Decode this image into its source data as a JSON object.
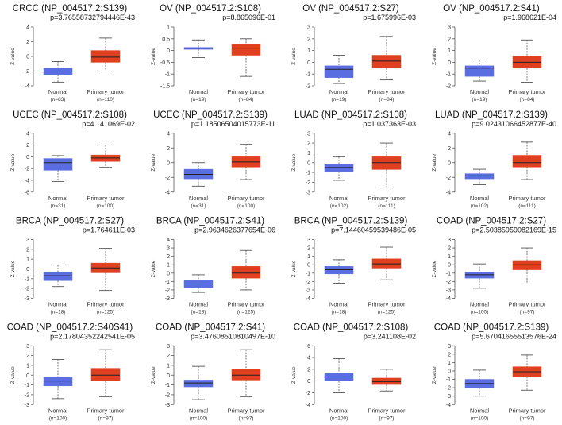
{
  "colors": {
    "normal_box": "#5b6ee1",
    "tumor_box": "#e0401f",
    "whisker": "#555555",
    "axis": "#555555",
    "median": "#222222"
  },
  "ylabel": "Z-value",
  "chart_data": [
    {
      "type": "box",
      "title": "CRCC (NP_004517.2:S139)",
      "pvalue": "p=3.76558732794446E-43",
      "ylim": [
        -4,
        4
      ],
      "yticks": [
        "-4",
        "-2",
        "0",
        "2",
        "4"
      ],
      "groups": [
        {
          "label": "Normal",
          "n": "(n=83)",
          "min": -3.5,
          "q1": -2.5,
          "median": -2.0,
          "q3": -1.6,
          "max": -0.7
        },
        {
          "label": "Primary tumor",
          "n": "(n=110)",
          "min": -2.0,
          "q1": -0.8,
          "median": -0.1,
          "q3": 0.8,
          "max": 2.5
        }
      ]
    },
    {
      "type": "box",
      "title": "OV (NP_004517.2:S108)",
      "pvalue": "p=8.865096E-01",
      "ylim": [
        -1.5,
        1.0
      ],
      "yticks": [
        "-1.5",
        "-1",
        "-0.5",
        "0",
        "0.5",
        "1"
      ],
      "groups": [
        {
          "label": "Normal",
          "n": "(n=19)",
          "min": -0.3,
          "q1": 0.05,
          "median": 0.1,
          "q3": 0.13,
          "max": 0.45
        },
        {
          "label": "Primary tumor",
          "n": "(n=84)",
          "min": -1.1,
          "q1": -0.2,
          "median": 0.1,
          "q3": 0.25,
          "max": 0.5
        }
      ]
    },
    {
      "type": "box",
      "title": "OV (NP_004517.2:S27)",
      "pvalue": "p=1.675996E-03",
      "ylim": [
        -2,
        3
      ],
      "yticks": [
        "-2",
        "-1",
        "0",
        "1",
        "2",
        "3"
      ],
      "groups": [
        {
          "label": "Normal",
          "n": "(n=19)",
          "min": -1.8,
          "q1": -1.3,
          "median": -0.6,
          "q3": -0.3,
          "max": 0.6
        },
        {
          "label": "Primary tumor",
          "n": "(n=84)",
          "min": -1.5,
          "q1": -0.5,
          "median": 0.1,
          "q3": 0.6,
          "max": 2.2
        }
      ]
    },
    {
      "type": "box",
      "title": "OV (NP_004517.2:S41)",
      "pvalue": "p=1.968621E-04",
      "ylim": [
        -2,
        3
      ],
      "yticks": [
        "-2",
        "-1",
        "0",
        "1",
        "2",
        "3"
      ],
      "groups": [
        {
          "label": "Normal",
          "n": "(n=19)",
          "min": -1.6,
          "q1": -1.2,
          "median": -0.5,
          "q3": -0.3,
          "max": 0.2
        },
        {
          "label": "Primary tumor",
          "n": "(n=84)",
          "min": -1.7,
          "q1": -0.5,
          "median": 0.0,
          "q3": 0.5,
          "max": 1.9
        }
      ]
    },
    {
      "type": "box",
      "title": "UCEC (NP_004517.2:S108)",
      "pvalue": "p=4.141069E-02",
      "ylim": [
        -6,
        4
      ],
      "yticks": [
        "-6",
        "-4",
        "-2",
        "0",
        "2",
        "4"
      ],
      "groups": [
        {
          "label": "Normal",
          "n": "(n=31)",
          "min": -4.2,
          "q1": -2.3,
          "median": -1.0,
          "q3": -0.3,
          "max": 0.2
        },
        {
          "label": "Primary tumor",
          "n": "(n=100)",
          "min": -1.8,
          "q1": -0.8,
          "median": -0.2,
          "q3": 0.3,
          "max": 2.0
        }
      ]
    },
    {
      "type": "box",
      "title": "UCEC (NP_004517.2:S139)",
      "pvalue": "p=1.18506504015773E-11",
      "ylim": [
        -4,
        4
      ],
      "yticks": [
        "-4",
        "-2",
        "0",
        "2",
        "4"
      ],
      "groups": [
        {
          "label": "Normal",
          "n": "(n=31)",
          "min": -3.2,
          "q1": -2.2,
          "median": -1.6,
          "q3": -0.9,
          "max": 0.0
        },
        {
          "label": "Primary tumor",
          "n": "(n=100)",
          "min": -2.3,
          "q1": -0.6,
          "median": 0.1,
          "q3": 0.8,
          "max": 2.5
        }
      ]
    },
    {
      "type": "box",
      "title": "LUAD (NP_004517.2:S108)",
      "pvalue": "p=1.037363E-03",
      "ylim": [
        -3,
        3
      ],
      "yticks": [
        "-3",
        "-2",
        "-1",
        "0",
        "1",
        "2",
        "3"
      ],
      "groups": [
        {
          "label": "Normal",
          "n": "(n=102)",
          "min": -1.8,
          "q1": -0.9,
          "median": -0.5,
          "q3": -0.2,
          "max": 0.6
        },
        {
          "label": "Primary tumor",
          "n": "(n=111)",
          "min": -2.5,
          "q1": -0.7,
          "median": 0.0,
          "q3": 0.6,
          "max": 2.0
        }
      ]
    },
    {
      "type": "box",
      "title": "LUAD (NP_004517.2:S139)",
      "pvalue": "p=9.02431066452877E-40",
      "ylim": [
        -4,
        4
      ],
      "yticks": [
        "-4",
        "-2",
        "0",
        "2",
        "4"
      ],
      "groups": [
        {
          "label": "Normal",
          "n": "(n=102)",
          "min": -3.0,
          "q1": -2.2,
          "median": -1.8,
          "q3": -1.5,
          "max": -0.9
        },
        {
          "label": "Primary tumor",
          "n": "(n=111)",
          "min": -2.3,
          "q1": -0.6,
          "median": 0.0,
          "q3": 1.0,
          "max": 2.8
        }
      ]
    },
    {
      "type": "box",
      "title": "BRCA (NP_004517.2:S27)",
      "pvalue": "p=1.764611E-03",
      "ylim": [
        -3,
        3
      ],
      "yticks": [
        "-3",
        "-2",
        "-1",
        "0",
        "1",
        "2",
        "3"
      ],
      "groups": [
        {
          "label": "Normal",
          "n": "(n=18)",
          "min": -1.8,
          "q1": -1.2,
          "median": -0.7,
          "q3": -0.3,
          "max": 0.4
        },
        {
          "label": "Primary tumor",
          "n": "(n=125)",
          "min": -2.2,
          "q1": -0.4,
          "median": 0.1,
          "q3": 0.6,
          "max": 2.1
        }
      ]
    },
    {
      "type": "box",
      "title": "BRCA (NP_004517.2:S41)",
      "pvalue": "p=2.9634626377654E-06",
      "ylim": [
        -3,
        4
      ],
      "yticks": [
        "-3",
        "-2",
        "-1",
        "0",
        "1",
        "2",
        "3",
        "4"
      ],
      "groups": [
        {
          "label": "Normal",
          "n": "(n=18)",
          "min": -2.3,
          "q1": -1.7,
          "median": -1.3,
          "q3": -0.9,
          "max": -0.2
        },
        {
          "label": "Primary tumor",
          "n": "(n=125)",
          "min": -2.0,
          "q1": -0.6,
          "median": 0.0,
          "q3": 0.8,
          "max": 2.7
        }
      ]
    },
    {
      "type": "box",
      "title": "BRCA (NP_004517.2:S139)",
      "pvalue": "p=7.14460459539486E-05",
      "ylim": [
        -4,
        3
      ],
      "yticks": [
        "-4",
        "-3",
        "-2",
        "-1",
        "0",
        "1",
        "2",
        "3"
      ],
      "groups": [
        {
          "label": "Normal",
          "n": "(n=18)",
          "min": -2.2,
          "q1": -1.1,
          "median": -0.6,
          "q3": -0.2,
          "max": 0.6
        },
        {
          "label": "Primary tumor",
          "n": "(n=125)",
          "min": -1.8,
          "q1": -0.4,
          "median": 0.1,
          "q3": 0.7,
          "max": 2.1
        }
      ]
    },
    {
      "type": "box",
      "title": "COAD (NP_004517.2:S27)",
      "pvalue": "p=2.50385959082169E-15",
      "ylim": [
        -4,
        3
      ],
      "yticks": [
        "-4",
        "-3",
        "-2",
        "-1",
        "0",
        "1",
        "2",
        "3"
      ],
      "groups": [
        {
          "label": "Normal",
          "n": "(n=100)",
          "min": -2.8,
          "q1": -1.6,
          "median": -1.2,
          "q3": -0.9,
          "max": 0.1
        },
        {
          "label": "Primary tumor",
          "n": "(n=97)",
          "min": -2.3,
          "q1": -0.6,
          "median": 0.0,
          "q3": 0.5,
          "max": 2.0
        }
      ]
    },
    {
      "type": "box",
      "title": "COAD (NP_004517.2:S40S41)",
      "pvalue": "p=2.17804352242541E-05",
      "ylim": [
        -3,
        3
      ],
      "yticks": [
        "-3",
        "-2",
        "-1",
        "0",
        "1",
        "2",
        "3"
      ],
      "groups": [
        {
          "label": "Normal",
          "n": "(n=100)",
          "min": -2.4,
          "q1": -1.1,
          "median": -0.6,
          "q3": -0.2,
          "max": 1.6
        },
        {
          "label": "Primary tumor",
          "n": "(n=97)",
          "min": -2.2,
          "q1": -0.6,
          "median": 0.0,
          "q3": 0.7,
          "max": 2.6
        }
      ]
    },
    {
      "type": "box",
      "title": "COAD (NP_004517.2:S41)",
      "pvalue": "p=3.47608510810497E-10",
      "ylim": [
        -3,
        3
      ],
      "yticks": [
        "-3",
        "-2",
        "-1",
        "0",
        "1",
        "2",
        "3"
      ],
      "groups": [
        {
          "label": "Normal",
          "n": "(n=100)",
          "min": -2.5,
          "q1": -1.2,
          "median": -0.8,
          "q3": -0.5,
          "max": 0.9
        },
        {
          "label": "Primary tumor",
          "n": "(n=97)",
          "min": -2.2,
          "q1": -0.5,
          "median": 0.0,
          "q3": 0.6,
          "max": 2.6
        }
      ]
    },
    {
      "type": "box",
      "title": "COAD (NP_004517.2:S108)",
      "pvalue": "p=3.241108E-02",
      "ylim": [
        -4,
        6
      ],
      "yticks": [
        "-4",
        "-2",
        "0",
        "2",
        "4",
        "6"
      ],
      "groups": [
        {
          "label": "Normal",
          "n": "(n=100)",
          "min": -2.0,
          "q1": 0.0,
          "median": 0.7,
          "q3": 1.4,
          "max": 3.8
        },
        {
          "label": "Primary tumor",
          "n": "(n=97)",
          "min": -1.7,
          "q1": -0.6,
          "median": -0.1,
          "q3": 0.5,
          "max": 2.0
        }
      ]
    },
    {
      "type": "box",
      "title": "COAD (NP_004517.2:S139)",
      "pvalue": "p=5.67041655513576E-24",
      "ylim": [
        -4,
        3
      ],
      "yticks": [
        "-4",
        "-3",
        "-2",
        "-1",
        "0",
        "1",
        "2",
        "3"
      ],
      "groups": [
        {
          "label": "Normal",
          "n": "(n=100)",
          "min": -3.0,
          "q1": -2.0,
          "median": -1.5,
          "q3": -1.0,
          "max": 0.1
        },
        {
          "label": "Primary tumor",
          "n": "(n=97)",
          "min": -2.3,
          "q1": -0.7,
          "median": -0.1,
          "q3": 0.5,
          "max": 1.9
        }
      ]
    }
  ]
}
